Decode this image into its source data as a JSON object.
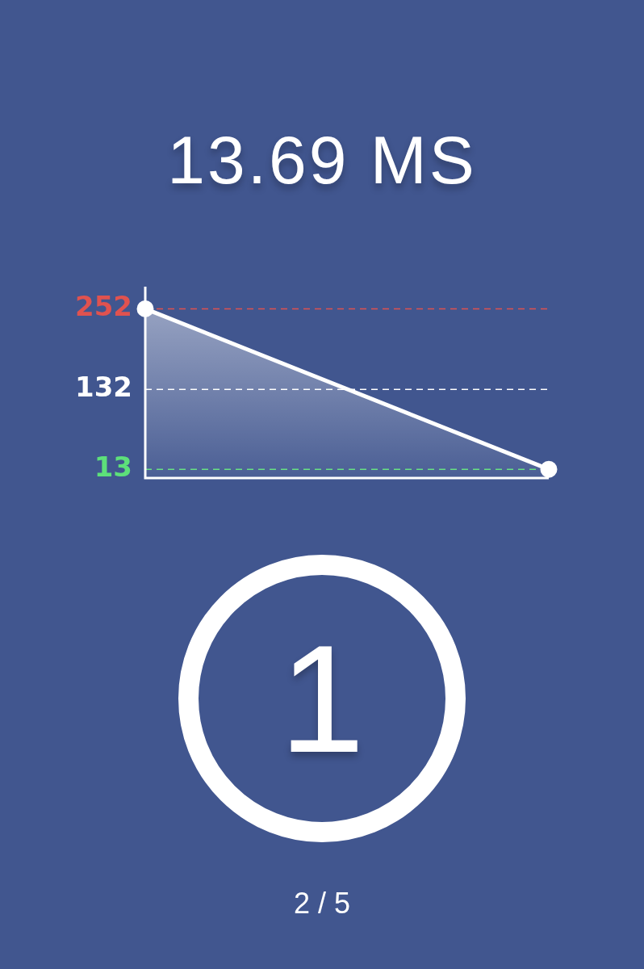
{
  "chart_data": {
    "type": "area",
    "title": "13.69 MS",
    "categories": [
      null,
      null
    ],
    "series": [
      {
        "color": "#ffffff",
        "values": [
          252,
          13
        ]
      }
    ],
    "ylim": [
      0,
      285
    ],
    "tick_labels": false,
    "legend": false,
    "marker": "circle",
    "ref_lines": [
      {
        "axis": "y",
        "value": 252,
        "label": "252",
        "color": "#e0524f",
        "line_style": "dashed"
      },
      {
        "axis": "y",
        "value": 132,
        "label": "132",
        "color": "#ffffff",
        "line_style": "dashed"
      },
      {
        "axis": "y",
        "value": 13,
        "label": "13",
        "color": "#5de07a",
        "line_style": "dashed"
      }
    ],
    "annotations": [
      "1",
      "2 / 5"
    ]
  }
}
